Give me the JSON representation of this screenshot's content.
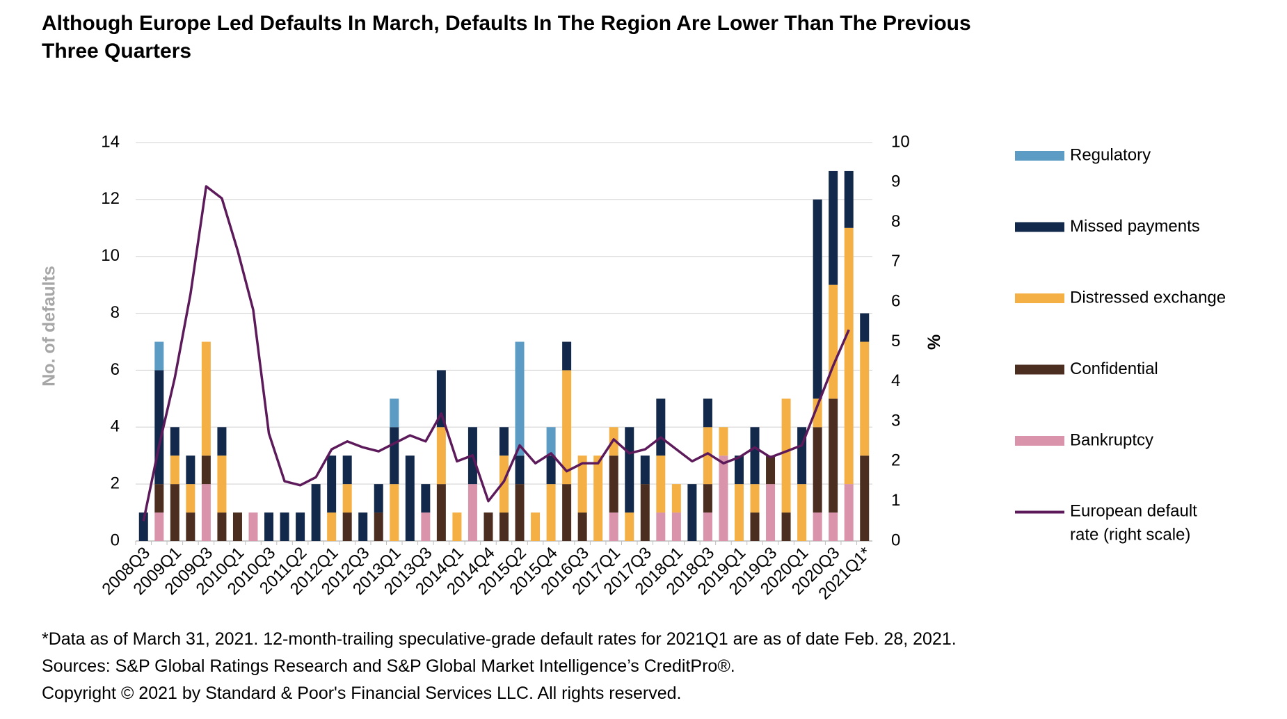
{
  "chart_data": {
    "type": "bar",
    "stacked": true,
    "title": "Although Europe Led Defaults In March, Defaults In The Region Are Lower Than The Previous Three Quarters",
    "ylabel": "No. of defaults",
    "y2label": "%",
    "categories": [
      "2008Q3",
      null,
      "2009Q1",
      null,
      "2009Q3",
      null,
      "2010Q1",
      null,
      "2010Q3",
      null,
      "2011Q2",
      null,
      "2012Q1",
      null,
      "2012Q3",
      null,
      "2013Q1",
      null,
      "2013Q3",
      null,
      "2014Q1",
      null,
      "2014Q4",
      null,
      "2015Q2",
      null,
      "2015Q4",
      null,
      "2016Q3",
      null,
      "2017Q1",
      null,
      "2017Q3",
      null,
      "2018Q1",
      null,
      "2018Q3",
      null,
      "2019Q1",
      null,
      "2019Q3",
      null,
      "2020Q1",
      null,
      "2020Q3",
      null,
      "2021Q1*"
    ],
    "series": [
      {
        "name": "Bankruptcy",
        "color": "#d993ab",
        "values": [
          0,
          1,
          0,
          0,
          2,
          0,
          0,
          1,
          0,
          0,
          0,
          0,
          0,
          0,
          0,
          0,
          0,
          0,
          1,
          0,
          0,
          2,
          0,
          0,
          0,
          0,
          0,
          0,
          0,
          0,
          1,
          0,
          0,
          1,
          1,
          0,
          1,
          3,
          0,
          0,
          2,
          0,
          0,
          1,
          1,
          2,
          0
        ]
      },
      {
        "name": "Confidential",
        "color": "#4b2e1f",
        "values": [
          0,
          1,
          2,
          1,
          1,
          1,
          1,
          0,
          0,
          0,
          0,
          0,
          0,
          1,
          0,
          1,
          0,
          0,
          0,
          2,
          0,
          0,
          1,
          1,
          2,
          0,
          0,
          2,
          1,
          0,
          2,
          0,
          2,
          0,
          0,
          0,
          1,
          0,
          0,
          1,
          1,
          1,
          0,
          3,
          4,
          0,
          3
        ]
      },
      {
        "name": "Distressed exchange",
        "color": "#f4b045",
        "values": [
          0,
          0,
          1,
          1,
          4,
          2,
          0,
          0,
          0,
          0,
          0,
          0,
          1,
          1,
          0,
          0,
          2,
          0,
          0,
          2,
          1,
          0,
          0,
          2,
          0,
          1,
          2,
          4,
          2,
          3,
          1,
          1,
          0,
          2,
          1,
          0,
          2,
          1,
          2,
          1,
          0,
          4,
          2,
          1,
          4,
          9,
          4
        ]
      },
      {
        "name": "Missed payments",
        "color": "#13294b",
        "values": [
          1,
          4,
          1,
          1,
          0,
          1,
          0,
          0,
          1,
          1,
          1,
          2,
          2,
          1,
          1,
          1,
          2,
          3,
          1,
          2,
          0,
          2,
          0,
          1,
          1,
          0,
          1,
          1,
          0,
          0,
          0,
          3,
          1,
          2,
          0,
          2,
          1,
          0,
          1,
          2,
          0,
          0,
          2,
          7,
          4,
          2,
          1
        ]
      },
      {
        "name": "Regulatory",
        "color": "#5b9bc4",
        "values": [
          0,
          1,
          0,
          0,
          0,
          0,
          0,
          0,
          0,
          0,
          0,
          0,
          0,
          0,
          0,
          0,
          1,
          0,
          0,
          0,
          0,
          0,
          0,
          0,
          4,
          0,
          1,
          0,
          0,
          0,
          0,
          0,
          0,
          0,
          0,
          0,
          0,
          0,
          0,
          0,
          0,
          0,
          0,
          0,
          0,
          0,
          0
        ]
      },
      {
        "name": "European default rate (right scale)",
        "color": "#5c1a5b",
        "type": "line",
        "axis": "y2",
        "values": [
          0.5,
          2.4,
          4.1,
          6.2,
          8.9,
          8.6,
          7.3,
          5.8,
          2.7,
          1.5,
          1.4,
          1.6,
          2.3,
          2.5,
          2.35,
          2.25,
          2.45,
          2.65,
          2.5,
          3.2,
          2.0,
          2.15,
          1.0,
          1.5,
          2.4,
          1.95,
          2.2,
          1.75,
          1.95,
          1.95,
          2.55,
          2.2,
          2.3,
          2.6,
          2.3,
          2.0,
          2.2,
          1.95,
          2.1,
          2.35,
          2.1,
          2.25,
          2.4,
          3.4,
          4.4,
          5.3,
          null
        ]
      }
    ],
    "ylim": [
      0,
      14
    ],
    "yticks": [
      0,
      2,
      4,
      6,
      8,
      10,
      12,
      14
    ],
    "y2lim": [
      0,
      10
    ],
    "y2ticks": [
      0,
      1,
      2,
      3,
      4,
      5,
      6,
      7,
      8,
      9,
      10
    ],
    "grid": true,
    "legend": "right",
    "footnote": "*Data as of March 31, 2021. 12-month-trailing speculative-grade default rates for 2021Q1 are as of date Feb. 28, 2021. Sources: S&P Global Ratings Research and S&P Global Market Intelligence’s CreditPro®.",
    "copyright": "Copyright © 2021 by Standard & Poor's Financial Services LLC. All rights reserved."
  }
}
